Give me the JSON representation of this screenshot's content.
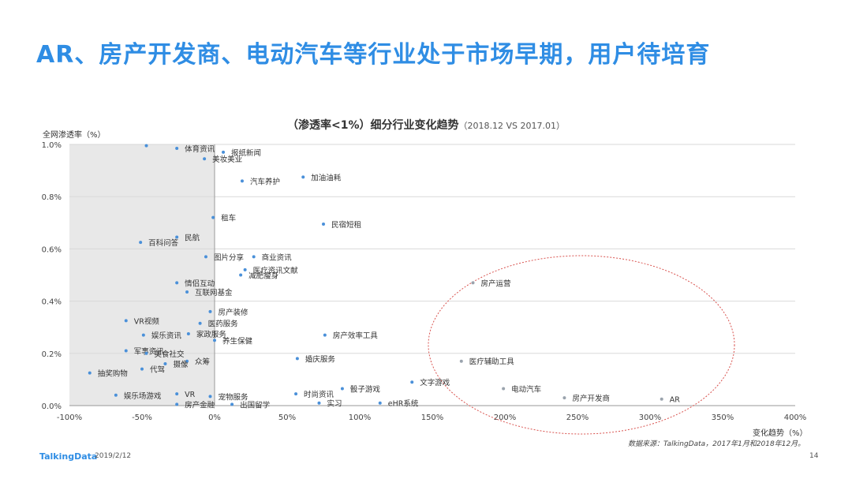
{
  "page_title": "AR、房产开发商、电动汽车等行业处于市场早期，用户待培育",
  "chart_title": "（渗透率<1%）细分行业变化趋势",
  "chart_subtitle": "（2018.12  VS 2017.01）",
  "source_note": "数据来源：TalkingData，2017年1月和2018年12月。",
  "footer": {
    "brand": "TalkingData",
    "date": "2019/2/12",
    "page": "14"
  },
  "colors": {
    "accent": "#2f8de4",
    "point_blue": "#4a90d9",
    "point_gray": "#9aa3ad",
    "ellipse": "#d9534f",
    "shade": "#e8e8e8"
  },
  "chart_data": {
    "type": "scatter",
    "xlabel": "变化趋势（%）",
    "ylabel": "全网渗透率（%）",
    "xlim": [
      -100,
      400
    ],
    "ylim": [
      0,
      1.0
    ],
    "x_ticks": [
      -100,
      -50,
      0,
      50,
      100,
      150,
      200,
      250,
      300,
      350,
      400
    ],
    "x_tick_labels": [
      "-100%",
      "-50%",
      "0%",
      "50%",
      "100%",
      "150%",
      "200%",
      "250%",
      "300%",
      "350%",
      "400%"
    ],
    "y_ticks": [
      0,
      0.2,
      0.4,
      0.6,
      0.8,
      1.0
    ],
    "y_tick_labels": [
      "0.0%",
      "0.2%",
      "0.4%",
      "0.6%",
      "0.8%",
      "1.0%"
    ],
    "grid": "horizontal",
    "highlight": "ellipse around 房产运营、医疗辅助工具、电动汽车、房产开发商、AR",
    "points": [
      {
        "label": "",
        "x": -47,
        "y": 0.995
      },
      {
        "label": "体育资讯",
        "x": -26,
        "y": 0.985
      },
      {
        "label": "报纸新闻",
        "x": 6,
        "y": 0.97
      },
      {
        "label": "美妆美业",
        "x": -7,
        "y": 0.945
      },
      {
        "label": "汽车养护",
        "x": 19,
        "y": 0.86
      },
      {
        "label": "加油油耗",
        "x": 61,
        "y": 0.875
      },
      {
        "label": "租车",
        "x": -1,
        "y": 0.72
      },
      {
        "label": "民宿短租",
        "x": 75,
        "y": 0.695
      },
      {
        "label": "民航",
        "x": -26,
        "y": 0.645
      },
      {
        "label": "百科问答",
        "x": -51,
        "y": 0.625
      },
      {
        "label": "图片分享",
        "x": -6,
        "y": 0.57
      },
      {
        "label": "商业资讯",
        "x": 27,
        "y": 0.57
      },
      {
        "label": "医疗资讯文献",
        "x": 21,
        "y": 0.52
      },
      {
        "label": "减肥瘦身",
        "x": 18,
        "y": 0.5
      },
      {
        "label": "情侣互动",
        "x": -26,
        "y": 0.47
      },
      {
        "label": "互联网基金",
        "x": -19,
        "y": 0.435
      },
      {
        "label": "房产运营",
        "x": 178,
        "y": 0.47
      },
      {
        "label": "房产装修",
        "x": -3,
        "y": 0.36
      },
      {
        "label": "VR视频",
        "x": -61,
        "y": 0.325
      },
      {
        "label": "医药服务",
        "x": -10,
        "y": 0.315
      },
      {
        "label": "娱乐资讯",
        "x": -49,
        "y": 0.27
      },
      {
        "label": "家政服务",
        "x": -18,
        "y": 0.275
      },
      {
        "label": "房产效率工具",
        "x": 76,
        "y": 0.27
      },
      {
        "label": "养生保健",
        "x": 0,
        "y": 0.25
      },
      {
        "label": "军事资讯",
        "x": -61,
        "y": 0.21
      },
      {
        "label": "美食社交",
        "x": -47,
        "y": 0.2
      },
      {
        "label": "婚庆服务",
        "x": 57,
        "y": 0.18
      },
      {
        "label": "医疗辅助工具",
        "x": 170,
        "y": 0.17
      },
      {
        "label": "众筹",
        "x": -19,
        "y": 0.17
      },
      {
        "label": "摄像",
        "x": -34,
        "y": 0.16
      },
      {
        "label": "代驾",
        "x": -50,
        "y": 0.14
      },
      {
        "label": "抽奖购物",
        "x": -86,
        "y": 0.125
      },
      {
        "label": "文字游戏",
        "x": 136,
        "y": 0.09
      },
      {
        "label": "骰子游戏",
        "x": 88,
        "y": 0.065
      },
      {
        "label": "电动汽车",
        "x": 199,
        "y": 0.065
      },
      {
        "label": "时尚资讯",
        "x": 56,
        "y": 0.045
      },
      {
        "label": "娱乐场游戏",
        "x": -68,
        "y": 0.04
      },
      {
        "label": "VR",
        "x": -26,
        "y": 0.045
      },
      {
        "label": "宠物服务",
        "x": -3,
        "y": 0.035
      },
      {
        "label": "房产开发商",
        "x": 241,
        "y": 0.03
      },
      {
        "label": "AR",
        "x": 308,
        "y": 0.025
      },
      {
        "label": "实习",
        "x": 72,
        "y": 0.01
      },
      {
        "label": "eHR系统",
        "x": 114,
        "y": 0.01
      },
      {
        "label": "房产金融",
        "x": -26,
        "y": 0.005
      },
      {
        "label": "出国留学",
        "x": 12,
        "y": 0.005
      }
    ]
  }
}
